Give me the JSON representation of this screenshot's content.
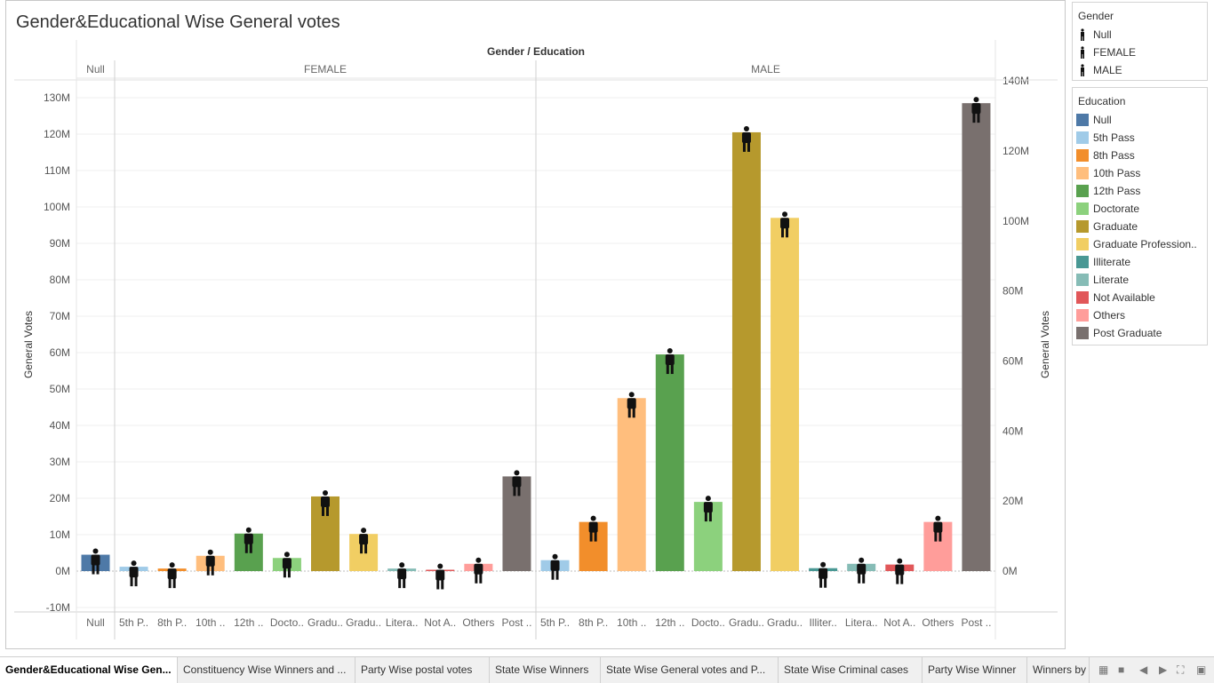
{
  "title": "Gender&Educational Wise General votes",
  "chart_data": {
    "type": "bar",
    "title": "Gender&Educational Wise General votes",
    "column_header": "Gender / Education",
    "ylabel": "General Votes",
    "ylabel_right": "General Votes",
    "ylim": [
      -10000000,
      130000000
    ],
    "yticks": [
      "-10M",
      "0M",
      "10M",
      "20M",
      "30M",
      "40M",
      "50M",
      "60M",
      "70M",
      "80M",
      "90M",
      "100M",
      "110M",
      "120M",
      "130M"
    ],
    "yticks_right": [
      "0M",
      "20M",
      "40M",
      "60M",
      "80M",
      "100M",
      "120M",
      "140M"
    ],
    "groups": [
      {
        "name": "Null",
        "bars": [
          {
            "label": "Null",
            "education": "Null",
            "value": 4500000
          }
        ]
      },
      {
        "name": "FEMALE",
        "bars": [
          {
            "label": "5th P..",
            "education": "5th Pass",
            "value": 1200000
          },
          {
            "label": "8th P..",
            "education": "8th Pass",
            "value": 700000
          },
          {
            "label": "10th ..",
            "education": "10th Pass",
            "value": 4200000
          },
          {
            "label": "12th ..",
            "education": "12th Pass",
            "value": 10300000
          },
          {
            "label": "Docto..",
            "education": "Doctorate",
            "value": 3600000
          },
          {
            "label": "Gradu..",
            "education": "Graduate",
            "value": 20500000
          },
          {
            "label": "Gradu..",
            "education": "Graduate Professional",
            "value": 10200000
          },
          {
            "label": "Litera..",
            "education": "Literate",
            "value": 700000
          },
          {
            "label": "Not A..",
            "education": "Not Available",
            "value": 200000
          },
          {
            "label": "Others",
            "education": "Others",
            "value": 2000000
          },
          {
            "label": "Post ..",
            "education": "Post Graduate",
            "value": 26000000
          }
        ]
      },
      {
        "name": "MALE",
        "bars": [
          {
            "label": "5th P..",
            "education": "5th Pass",
            "value": 3000000
          },
          {
            "label": "8th P..",
            "education": "8th Pass",
            "value": 13500000
          },
          {
            "label": "10th ..",
            "education": "10th Pass",
            "value": 47500000
          },
          {
            "label": "12th ..",
            "education": "12th Pass",
            "value": 59500000
          },
          {
            "label": "Docto..",
            "education": "Doctorate",
            "value": 19000000
          },
          {
            "label": "Gradu..",
            "education": "Graduate",
            "value": 120500000
          },
          {
            "label": "Gradu..",
            "education": "Graduate Professional",
            "value": 97000000
          },
          {
            "label": "Illiter..",
            "education": "Illiterate",
            "value": 800000
          },
          {
            "label": "Litera..",
            "education": "Literate",
            "value": 2000000
          },
          {
            "label": "Not A..",
            "education": "Not Available",
            "value": 1800000
          },
          {
            "label": "Others",
            "education": "Others",
            "value": 13500000
          },
          {
            "label": "Post ..",
            "education": "Post Graduate",
            "value": 128500000
          }
        ]
      }
    ]
  },
  "legend_gender": {
    "title": "Gender",
    "items": [
      {
        "label": "Null",
        "icon": "person-icon"
      },
      {
        "label": "FEMALE",
        "icon": "female-icon"
      },
      {
        "label": "MALE",
        "icon": "male-icon"
      }
    ]
  },
  "legend_education": {
    "title": "Education",
    "items": [
      {
        "label": "Null",
        "color": "#4e79a7"
      },
      {
        "label": "5th Pass",
        "color": "#a0cbe8"
      },
      {
        "label": "8th Pass",
        "color": "#f28e2b"
      },
      {
        "label": "10th Pass",
        "color": "#ffbe7d"
      },
      {
        "label": "12th Pass",
        "color": "#59a14f"
      },
      {
        "label": "Doctorate",
        "color": "#8cd17d"
      },
      {
        "label": "Graduate",
        "color": "#b6992d"
      },
      {
        "label": "Graduate Profession..",
        "color": "#f1ce63"
      },
      {
        "label": "Illiterate",
        "color": "#499894"
      },
      {
        "label": "Literate",
        "color": "#86bcb6"
      },
      {
        "label": "Not Available",
        "color": "#e15759"
      },
      {
        "label": "Others",
        "color": "#ff9d9a"
      },
      {
        "label": "Post Graduate",
        "color": "#79706e"
      }
    ]
  },
  "tabs": [
    {
      "label": "Gender&Educational Wise Gen...",
      "active": true
    },
    {
      "label": "Constituency Wise Winners and ...",
      "active": false
    },
    {
      "label": "Party Wise postal votes",
      "active": false
    },
    {
      "label": "State Wise Winners",
      "active": false
    },
    {
      "label": "State Wise General votes  and P...",
      "active": false
    },
    {
      "label": "State Wise Criminal cases",
      "active": false
    },
    {
      "label": "Party Wise Winner",
      "active": false
    },
    {
      "label": "Winners by",
      "active": false
    }
  ]
}
